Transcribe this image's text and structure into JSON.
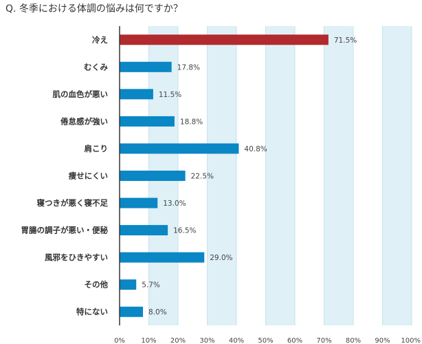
{
  "question": "Q. 冬季における体調の悩みは何ですか？",
  "colors": {
    "bar": "#0a87c4",
    "highlight_bar": "#b02a2e",
    "highlight_label": "#b02a2e",
    "band": "#dff0f7",
    "band_line": "#c5e2ee",
    "axis": "#333333"
  },
  "chart_data": {
    "type": "bar",
    "orientation": "horizontal",
    "title": "Q. 冬季における体調の悩みは何ですか？",
    "categories": [
      "冷え",
      "むくみ",
      "肌の血色が悪い",
      "倦怠感が強い",
      "肩こり",
      "痩せにくい",
      "寝つきが悪く寝不足",
      "胃腸の調子が悪い・便秘",
      "風邪をひきやすい",
      "その他",
      "特にない"
    ],
    "values": [
      71.5,
      17.8,
      11.5,
      18.8,
      40.8,
      22.5,
      13.0,
      16.5,
      29.0,
      5.7,
      8.0
    ],
    "value_labels": [
      "71.5%",
      "17.8%",
      "11.5%",
      "18.8%",
      "40.8%",
      "22.5%",
      "13.0%",
      "16.5%",
      "29.0%",
      "5.7%",
      "8.0%"
    ],
    "highlight_index": 0,
    "xlim": [
      0,
      100
    ],
    "x_ticks": [
      "0%",
      "10%",
      "20%",
      "30%",
      "40%",
      "50%",
      "60%",
      "70%",
      "80%",
      "90%",
      "100%"
    ],
    "grid": "alternating vertical bands",
    "xlabel": "",
    "ylabel": ""
  }
}
